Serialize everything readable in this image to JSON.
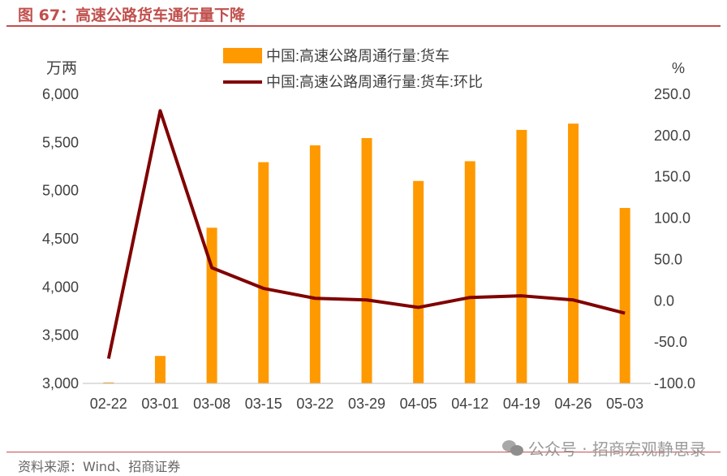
{
  "figure": {
    "title": "图 67：高速公路货车通行量下降",
    "source": "资料来源：Wind、招商证券",
    "watermark": "公众号 · 招商宏观静思录"
  },
  "chart_data": {
    "type": "bar+line",
    "categories": [
      "02-22",
      "03-01",
      "03-08",
      "03-15",
      "03-22",
      "03-29",
      "04-05",
      "04-12",
      "04-19",
      "04-26",
      "05-03"
    ],
    "series": [
      {
        "name": "中国:高速公路周通行量:货车",
        "type": "bar",
        "axis": "left",
        "color": "#ff9900",
        "values": [
          3010,
          3285,
          4615,
          5295,
          5470,
          5545,
          5100,
          5305,
          5630,
          5695,
          4820
        ]
      },
      {
        "name": "中国:高速公路周通行量:货车:环比",
        "type": "line",
        "axis": "right",
        "color": "#800000",
        "values": [
          -70,
          230,
          40,
          15,
          3,
          1,
          -8,
          4,
          6,
          1,
          -15
        ]
      }
    ],
    "left_axis": {
      "unit": "万两",
      "range": [
        3000,
        6000
      ],
      "ticks": [
        "3,000",
        "3,500",
        "4,000",
        "4,500",
        "5,000",
        "5,500",
        "6,000"
      ]
    },
    "right_axis": {
      "unit": "%",
      "range": [
        -100,
        250
      ],
      "ticks": [
        "-100.0",
        "-50.0",
        "0.0",
        "50.0",
        "100.0",
        "150.0",
        "200.0",
        "250.0"
      ]
    },
    "legend": "top-center",
    "grid": false
  }
}
